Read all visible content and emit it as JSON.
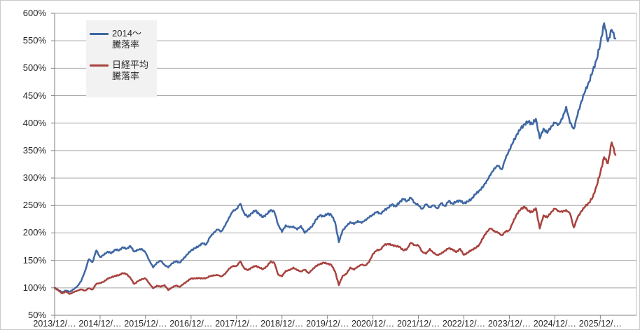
{
  "chart_data": {
    "type": "line",
    "title": "",
    "grid": true,
    "legend_position": "inside-top-left",
    "y_axis": {
      "min": 50,
      "max": 600,
      "step": 50,
      "unit": "%",
      "tick_labels": [
        "600%",
        "550%",
        "500%",
        "450%",
        "400%",
        "350%",
        "300%",
        "250%",
        "200%",
        "150%",
        "100%",
        "50%"
      ]
    },
    "x_axis": {
      "start": "2013/12",
      "interval": "monthly",
      "months_per_tick": 12,
      "tick_labels": [
        "2013/12/…",
        "2014/12/…",
        "2015/12/…",
        "2016/12/…",
        "2017/12/…",
        "2018/12/…",
        "2019/12/…",
        "2020/12/…",
        "2021/12/…",
        "2022/12/…",
        "2023/12/…",
        "2024/12/…",
        "2025/12/…"
      ]
    },
    "series": [
      {
        "name": "2014〜騰落率",
        "name_lines": [
          "2014〜",
          "騰落率"
        ],
        "color": "#3e67a3",
        "values": [
          100,
          96,
          92,
          95,
          93,
          97,
          103,
          112,
          130,
          152,
          147,
          168,
          156,
          160,
          166,
          163,
          170,
          168,
          174,
          171,
          176,
          166,
          169,
          171,
          164,
          150,
          137,
          146,
          149,
          142,
          137,
          145,
          148,
          146,
          153,
          161,
          168,
          172,
          176,
          181,
          179,
          192,
          201,
          206,
          203,
          213,
          228,
          239,
          244,
          253,
          236,
          229,
          236,
          241,
          234,
          229,
          234,
          242,
          238,
          215,
          202,
          214,
          210,
          212,
          206,
          213,
          200,
          207,
          212,
          225,
          232,
          230,
          235,
          233,
          220,
          183,
          205,
          212,
          220,
          216,
          222,
          218,
          224,
          228,
          234,
          238,
          235,
          241,
          246,
          252,
          248,
          256,
          262,
          258,
          264,
          255,
          250,
          244,
          252,
          247,
          250,
          245,
          254,
          249,
          258,
          253,
          257,
          259,
          254,
          257,
          262,
          270,
          277,
          283,
          295,
          305,
          318,
          322,
          316,
          335,
          352,
          365,
          380,
          390,
          398,
          403,
          398,
          408,
          372,
          390,
          382,
          394,
          400,
          398,
          408,
          430,
          400,
          390,
          415,
          440,
          458,
          475,
          495,
          515,
          545,
          582,
          549,
          570,
          554
        ]
      },
      {
        "name": "日経平均騰落率",
        "name_lines": [
          "日経平均",
          "騰落率"
        ],
        "color": "#a8423e",
        "values": [
          100,
          95,
          90,
          93,
          89,
          92,
          95,
          97,
          95,
          99,
          97,
          107,
          109,
          111,
          117,
          119,
          122,
          123,
          127,
          125,
          118,
          107,
          112,
          116,
          117,
          108,
          99,
          104,
          102,
          105,
          96,
          101,
          104,
          102,
          107,
          112,
          117,
          117,
          118,
          117,
          118,
          121,
          123,
          123,
          121,
          125,
          135,
          139,
          140,
          148,
          136,
          132,
          137,
          140,
          137,
          134,
          139,
          148,
          145,
          124,
          121,
          131,
          132,
          137,
          132,
          130,
          133,
          127,
          133,
          140,
          143,
          146,
          144,
          142,
          130,
          105,
          122,
          125,
          137,
          133,
          139,
          142,
          141,
          147,
          162,
          168,
          170,
          178,
          180,
          178,
          176,
          175,
          168,
          171,
          182,
          178,
          177,
          166,
          162,
          171,
          163,
          160,
          162,
          168,
          172,
          170,
          165,
          171,
          160,
          164,
          169,
          172,
          178,
          190,
          202,
          208,
          204,
          200,
          196,
          202,
          205,
          220,
          235,
          243,
          248,
          240,
          238,
          245,
          208,
          232,
          228,
          238,
          244,
          240,
          238,
          242,
          235,
          210,
          228,
          240,
          248,
          255,
          265,
          285,
          310,
          338,
          327,
          365,
          342
        ]
      }
    ],
    "colors": {
      "gridline": "#a6a6a6",
      "axis": "#7f7f7f",
      "plot_border": "#bfbfbf",
      "chart_border": "#c9c9c9",
      "text": "#262626",
      "legend_bg": "#f2f2f2"
    }
  }
}
